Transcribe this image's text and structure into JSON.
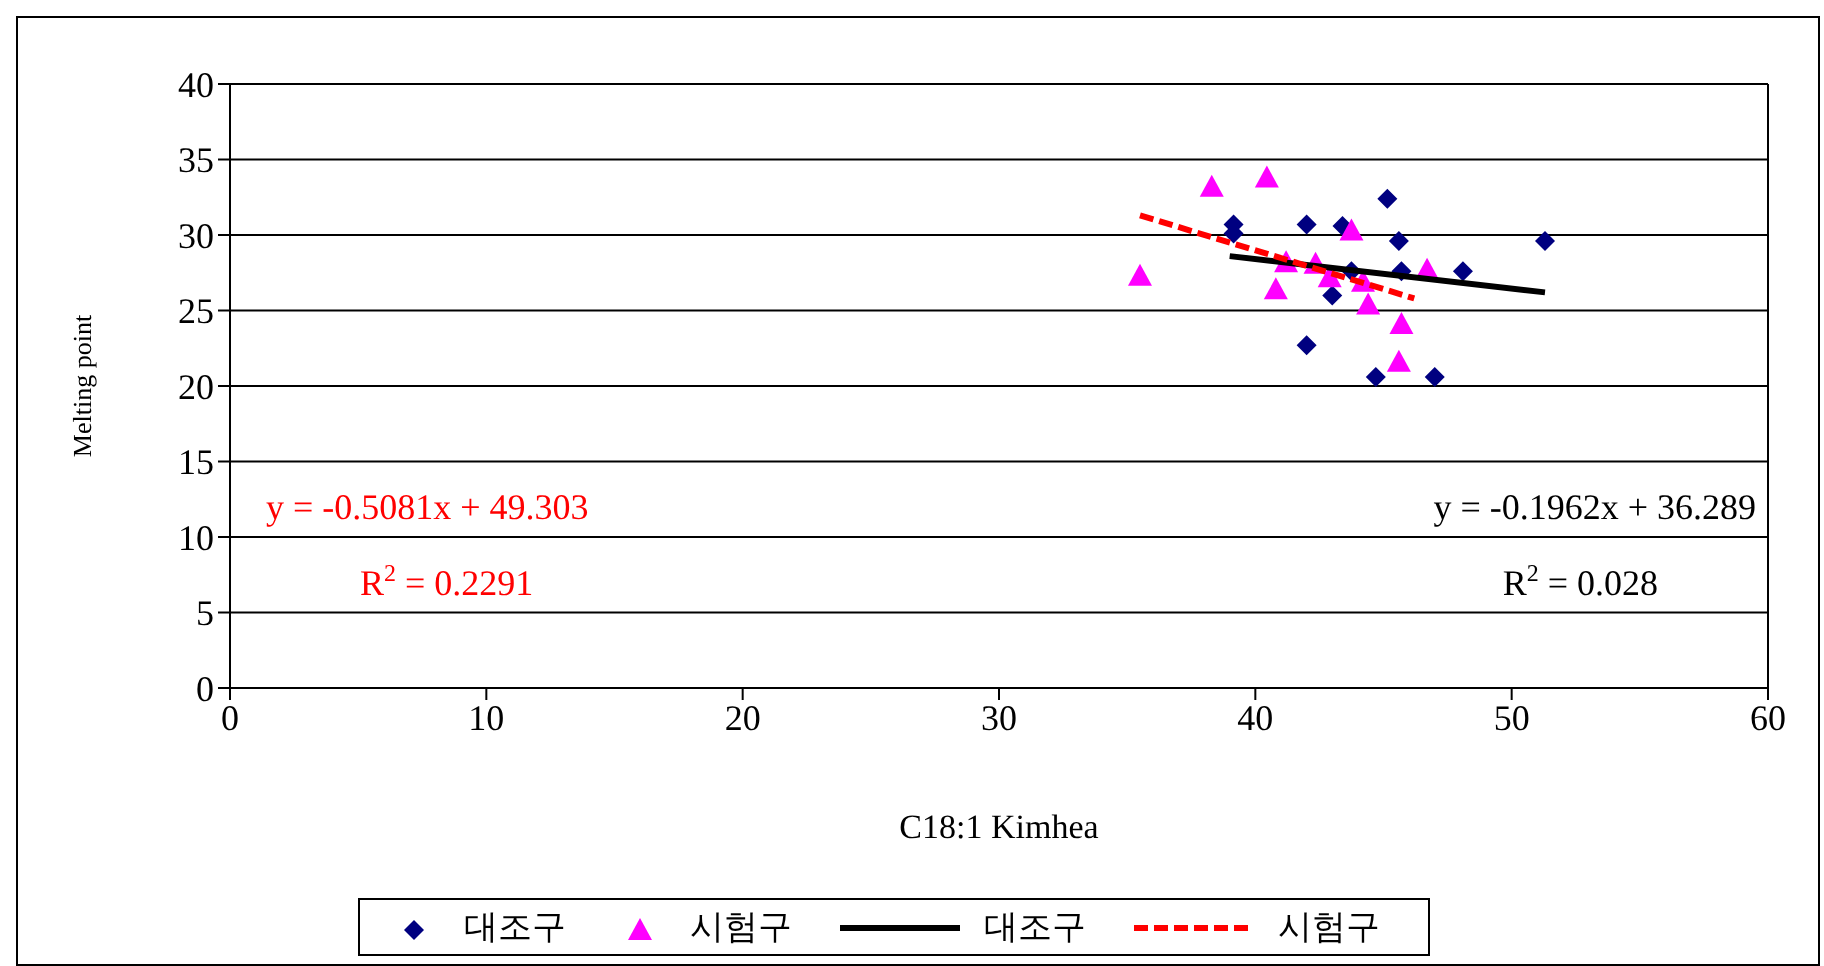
{
  "chart_data": {
    "type": "scatter",
    "xlabel": "C18:1 Kimhea",
    "ylabel": "Melting point",
    "xlim": [
      0,
      60
    ],
    "xticks": [
      0,
      10,
      20,
      30,
      40,
      50,
      60
    ],
    "ylim": [
      0,
      40
    ],
    "yticks": [
      0,
      5,
      10,
      15,
      20,
      25,
      30,
      35,
      40
    ],
    "grid": "y",
    "legend": "bottom",
    "annotations": [
      "y = -0.5081x + 49.303",
      "R$^{2}$ = 0.2291",
      "y = -0.1962x + 36.289",
      "R$^{2}$ = 0.028"
    ],
    "series": [
      {
        "name": "대조구",
        "type": "scatter",
        "marker": "diamond",
        "color": "#000080",
        "x": [
          39.15,
          39.15,
          42.0,
          43.4,
          45.15,
          45.6,
          51.3,
          43.75,
          45.7,
          48.1,
          43.0,
          42.0,
          44.7,
          47.0
        ],
        "values": [
          30.7,
          30.1,
          30.7,
          30.6,
          32.4,
          29.6,
          29.6,
          27.6,
          27.6,
          27.6,
          26.0,
          22.7,
          20.6,
          20.6
        ]
      },
      {
        "name": "시험구",
        "type": "scatter",
        "marker": "triangle",
        "color": "#ff00ff",
        "x": [
          35.5,
          38.3,
          40.45,
          43.75,
          41.2,
          42.35,
          40.8,
          42.9,
          44.2,
          46.7,
          44.4,
          45.7,
          45.6
        ],
        "values": [
          27.3,
          33.2,
          33.8,
          30.3,
          28.2,
          28.1,
          26.4,
          27.2,
          26.9,
          27.7,
          25.4,
          24.1,
          21.6
        ]
      },
      {
        "name": "대조구",
        "type": "line",
        "marker": "none",
        "line_style": "solid",
        "color": "#000000",
        "x": [
          39,
          51.3
        ],
        "values": [
          28.6,
          26.2
        ]
      },
      {
        "name": "시험구",
        "type": "line",
        "marker": "none",
        "line_style": "dashed",
        "color": "#ff0000",
        "x": [
          35.5,
          46.2
        ],
        "values": [
          31.3,
          25.8
        ]
      }
    ]
  }
}
